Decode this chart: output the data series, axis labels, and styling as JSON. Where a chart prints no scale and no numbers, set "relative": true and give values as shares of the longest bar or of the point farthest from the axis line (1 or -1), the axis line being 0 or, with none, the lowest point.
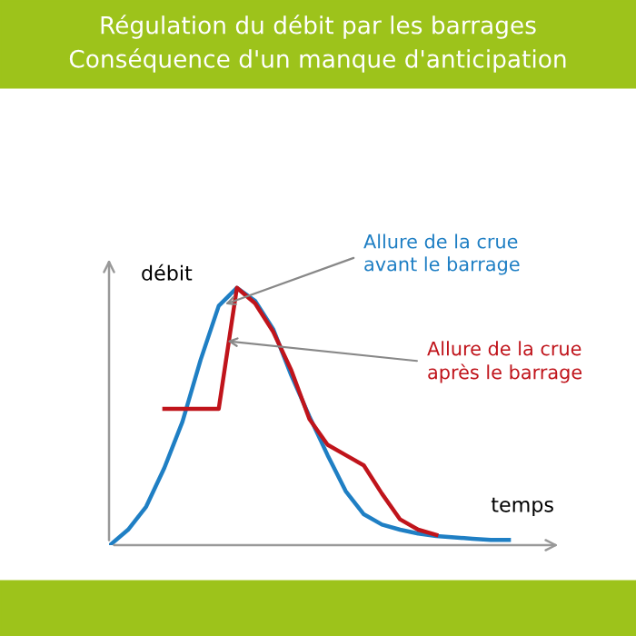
{
  "chart_data": {
    "type": "line",
    "relative": true,
    "title": "Régulation du débit par les barrages\nConséquence d'un manque d'anticipation",
    "xlabel": "temps",
    "ylabel": "débit",
    "grid": false,
    "legend": false,
    "marker": "none",
    "line_style": "solid",
    "categories": [
      null,
      null,
      null,
      null,
      null,
      null,
      null,
      null,
      null,
      null,
      null,
      null,
      null,
      null,
      null,
      null,
      null,
      null,
      null,
      null,
      null,
      null,
      null,
      null,
      null
    ],
    "series": [
      {
        "color": "#1f7fc4",
        "values": [
          0,
          0.06,
          0.15,
          0.3,
          0.48,
          0.72,
          0.93,
          1.0,
          0.95,
          0.84,
          0.66,
          0.5,
          0.35,
          0.21,
          0.12,
          0.08,
          0.06,
          0.045,
          0.035,
          0.03,
          0.025,
          0.02,
          0.02,
          null,
          null
        ]
      },
      {
        "color": "#c0141b",
        "values": [
          null,
          null,
          null,
          0.53,
          0.53,
          0.53,
          0.53,
          1.0,
          0.94,
          0.83,
          0.68,
          0.49,
          0.39,
          0.35,
          0.31,
          0.2,
          0.1,
          0.06,
          0.04,
          null,
          null,
          null,
          null,
          null,
          null
        ]
      }
    ],
    "annotations": [
      "Allure de la crue\navant le barrage",
      "Allure de la crue\naprès le barrage"
    ]
  }
}
